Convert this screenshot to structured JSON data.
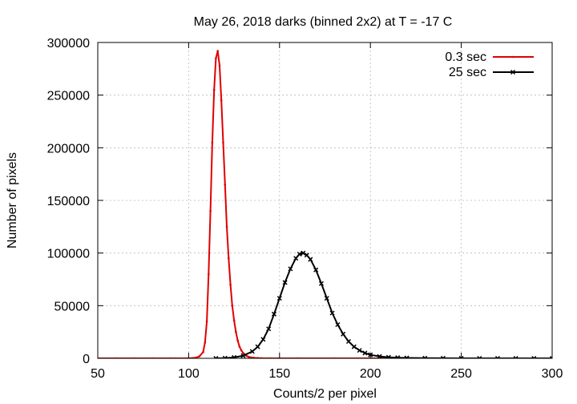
{
  "chart_data": {
    "type": "line",
    "title": "May 26, 2018 darks (binned 2x2) at T = -17 C",
    "xlabel": "Counts/2 per pixel",
    "ylabel": "Number of pixels",
    "xlim": [
      50,
      300
    ],
    "ylim": [
      0,
      300000
    ],
    "xticks": [
      50,
      100,
      150,
      200,
      250,
      300
    ],
    "yticks": [
      0,
      50000,
      100000,
      150000,
      200000,
      250000,
      300000
    ],
    "grid": true,
    "legend_position": "top-right",
    "series": [
      {
        "name": "0.3 sec",
        "color": "#e00000",
        "marker": "dot",
        "x": [
          50,
          60,
          70,
          80,
          90,
          100,
          104,
          106,
          108,
          109,
          110,
          111,
          112,
          113,
          114,
          115,
          116,
          117,
          118,
          119,
          120,
          121,
          122,
          123,
          124,
          125,
          126,
          127,
          128,
          129,
          130,
          131,
          132,
          133,
          134,
          135,
          136,
          138,
          140,
          145,
          150,
          160,
          180,
          200,
          250,
          300
        ],
        "y": [
          0,
          0,
          0,
          0,
          0,
          0,
          500,
          2000,
          6000,
          15000,
          35000,
          80000,
          140000,
          205000,
          255000,
          285000,
          292000,
          278000,
          245000,
          205000,
          165000,
          125000,
          95000,
          70000,
          50000,
          36000,
          25000,
          17000,
          11000,
          7500,
          5000,
          3300,
          2200,
          1400,
          900,
          600,
          400,
          200,
          100,
          0,
          0,
          0,
          0,
          0,
          0,
          0
        ]
      },
      {
        "name": "25 sec",
        "color": "#000000",
        "marker": "cross",
        "x": [
          115,
          120,
          125,
          130,
          135,
          138,
          141,
          144,
          147,
          150,
          153,
          156,
          159,
          161,
          163,
          165,
          167,
          170,
          173,
          176,
          179,
          182,
          185,
          188,
          191,
          194,
          197,
          200,
          205,
          210,
          215,
          220,
          230,
          240,
          250,
          260,
          270,
          280,
          290,
          300
        ],
        "y": [
          0,
          200,
          800,
          2500,
          6500,
          11000,
          18000,
          28000,
          42000,
          57000,
          72000,
          85000,
          95000,
          99000,
          100000,
          98000,
          94000,
          84000,
          71000,
          57000,
          43000,
          32000,
          23000,
          16000,
          11000,
          7500,
          5000,
          3300,
          1800,
          1000,
          600,
          350,
          150,
          60,
          30,
          15,
          8,
          4,
          2,
          0
        ]
      }
    ]
  }
}
